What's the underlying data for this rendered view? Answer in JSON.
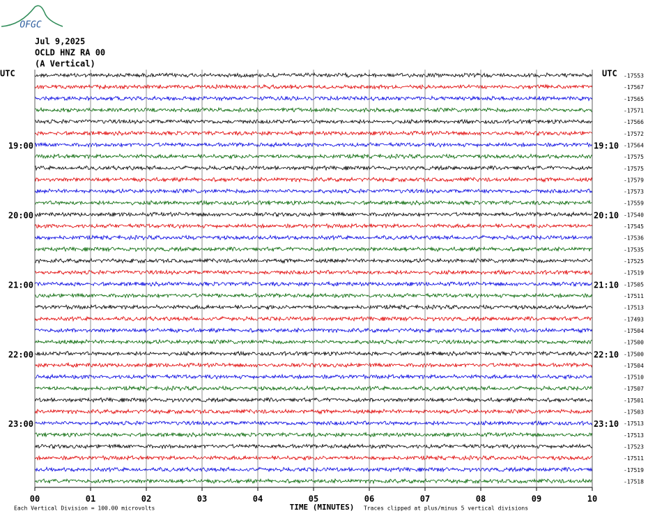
{
  "logo": "OFGC",
  "chart_data": {
    "type": "helicorder",
    "title_lines": [
      "Jul 9,2025",
      "OCLD HNZ RA 00",
      "(A Vertical)"
    ],
    "left_axis_label": "UTC",
    "right_axis_label": "UTC",
    "xlabel": "TIME (MINUTES)",
    "xlim": [
      0,
      10
    ],
    "xticks": [
      {
        "value": 0,
        "label": "00"
      },
      {
        "value": 1,
        "label": "01"
      },
      {
        "value": 2,
        "label": "02"
      },
      {
        "value": 3,
        "label": "03"
      },
      {
        "value": 4,
        "label": "04"
      },
      {
        "value": 5,
        "label": "05"
      },
      {
        "value": 6,
        "label": "06"
      },
      {
        "value": 7,
        "label": "07"
      },
      {
        "value": 8,
        "label": "08"
      },
      {
        "value": 9,
        "label": "09"
      },
      10
    ],
    "grid": true,
    "colors": [
      "#000000",
      "#e00000",
      "#0000e0",
      "#006400"
    ],
    "left_labels": [
      null,
      null,
      null,
      null,
      null,
      null,
      "19:00",
      null,
      null,
      null,
      null,
      null,
      "20:00",
      null,
      null,
      null,
      null,
      null,
      "21:00",
      null,
      null,
      null,
      null,
      null,
      "22:00",
      null,
      null,
      null,
      null,
      null,
      "23:00",
      null,
      null,
      null,
      null,
      null
    ],
    "right_labels": [
      null,
      null,
      null,
      null,
      null,
      null,
      "19:10",
      null,
      null,
      null,
      null,
      null,
      "20:10",
      null,
      null,
      null,
      null,
      null,
      "21:10",
      null,
      null,
      null,
      null,
      null,
      "22:10",
      null,
      null,
      null,
      null,
      null,
      "23:10",
      null,
      null,
      null,
      null,
      null
    ],
    "offsets": [
      -17553,
      -17567,
      -17565,
      -17571,
      -17566,
      -17572,
      -17564,
      -17575,
      -17575,
      -17579,
      -17573,
      -17559,
      -17540,
      -17545,
      -17536,
      -17535,
      -17525,
      -17519,
      -17505,
      -17511,
      -17513,
      -17493,
      -17504,
      -17500,
      -17500,
      -17504,
      -17510,
      -17507,
      -17501,
      -17503,
      -17513,
      -17513,
      -17523,
      -17511,
      -17519,
      -17518
    ],
    "footnote_left": "Each Vertical Division =  100.00 microvolts",
    "footnote_right": "Traces clipped at plus/minus 5 vertical divisions"
  }
}
